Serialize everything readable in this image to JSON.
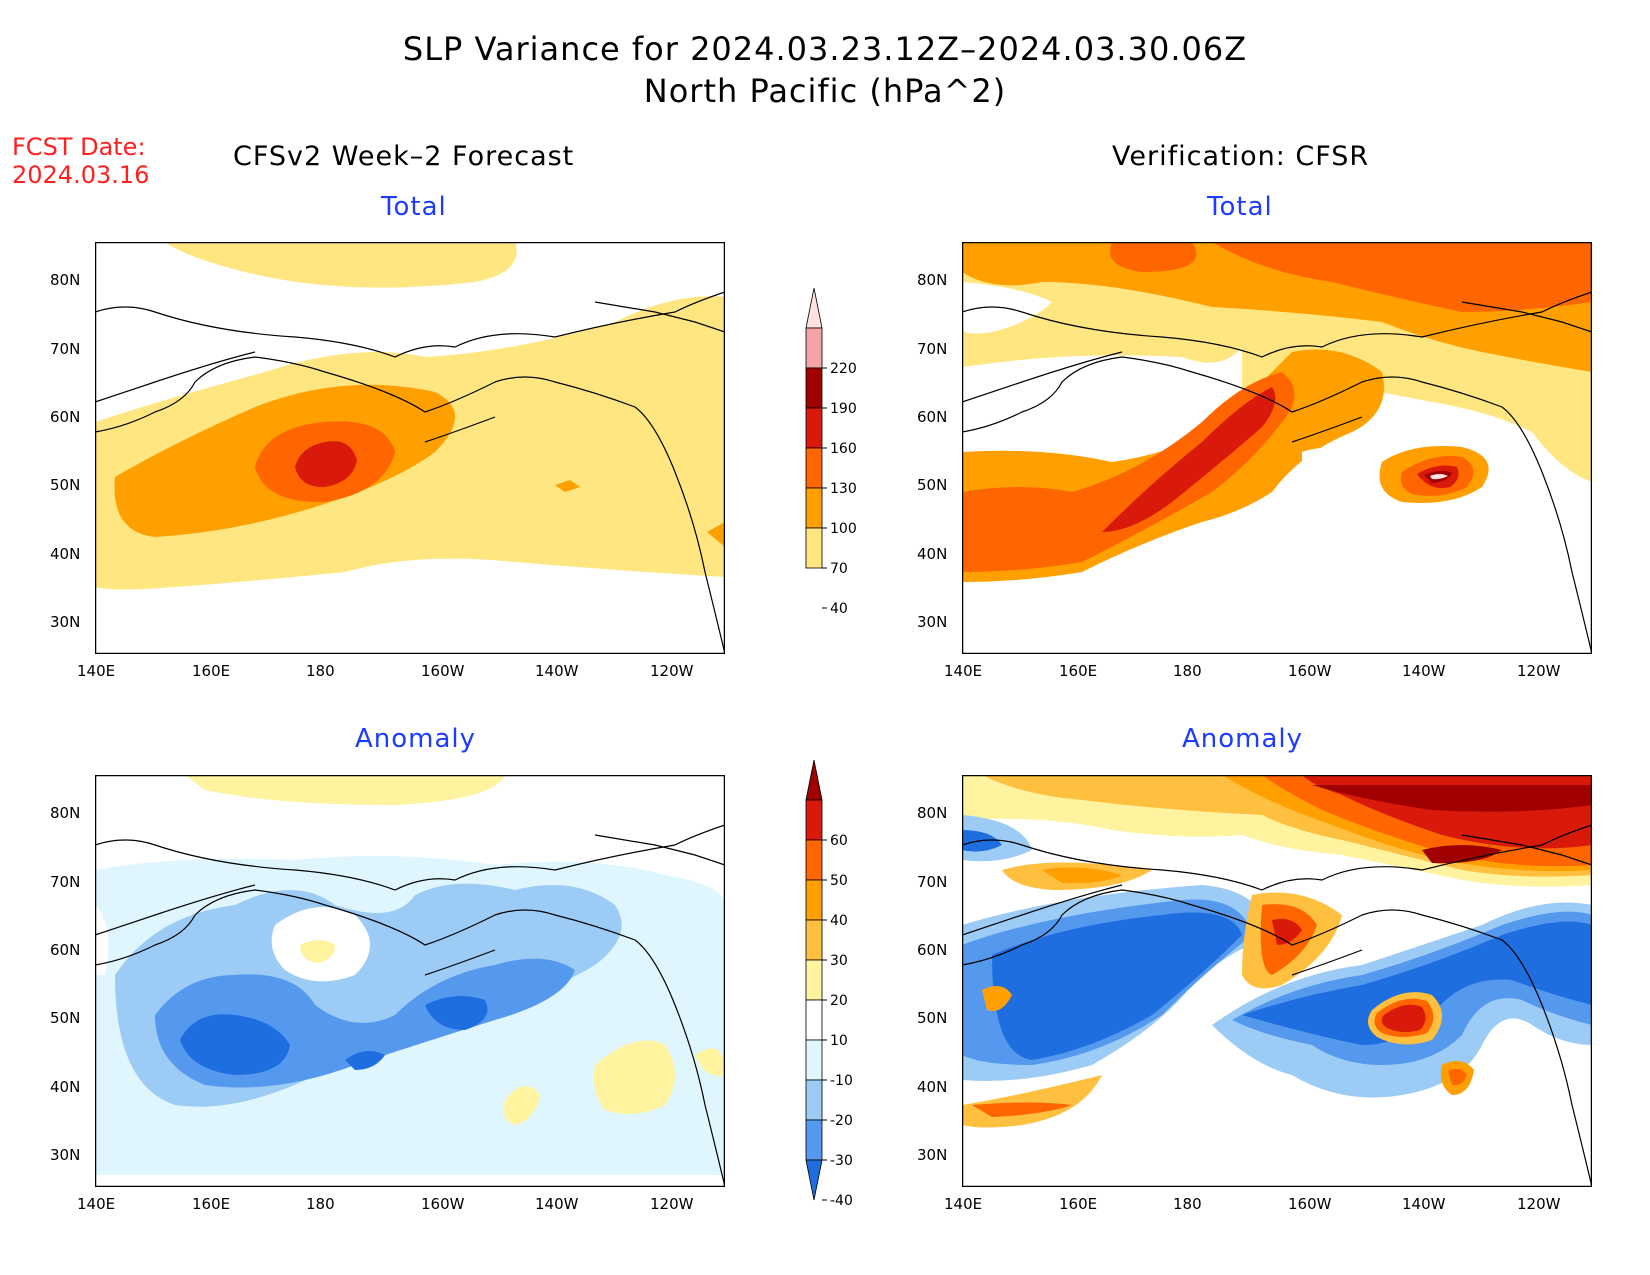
{
  "title": {
    "line1": "SLP Variance for 2024.03.23.12Z–2024.03.30.06Z",
    "line2": "North Pacific (hPa^2)"
  },
  "fcst_date": {
    "label": "FCST Date:",
    "date": "2024.03.16"
  },
  "columns": {
    "left": "CFSv2 Week–2 Forecast",
    "right": "Verification: CFSR"
  },
  "panels": {
    "total_label": "Total",
    "anomaly_label": "Anomaly"
  },
  "axes": {
    "lat_ticks": [
      "80N",
      "70N",
      "60N",
      "50N",
      "40N",
      "30N"
    ],
    "lon_ticks": [
      "140E",
      "160E",
      "180",
      "160W",
      "140W",
      "120W"
    ]
  },
  "colorbars": {
    "total": {
      "levels": [
        "220",
        "190",
        "160",
        "130",
        "100",
        "70",
        "40"
      ],
      "colors": [
        "#ffe0e0",
        "#f4a4a6",
        "#a00000",
        "#d91a0a",
        "#ff6600",
        "#ffa000",
        "#ffe680"
      ]
    },
    "anomaly": {
      "levels": [
        "60",
        "50",
        "40",
        "30",
        "20",
        "10",
        "-10",
        "-20",
        "-30",
        "-40"
      ],
      "colors": [
        "#a00000",
        "#d91a0a",
        "#ff6600",
        "#ffa000",
        "#ffc040",
        "#fff3a0",
        "#ffffff",
        "#dff6ff",
        "#9ccbf5",
        "#5599ee",
        "#1e6ee0"
      ]
    }
  }
}
